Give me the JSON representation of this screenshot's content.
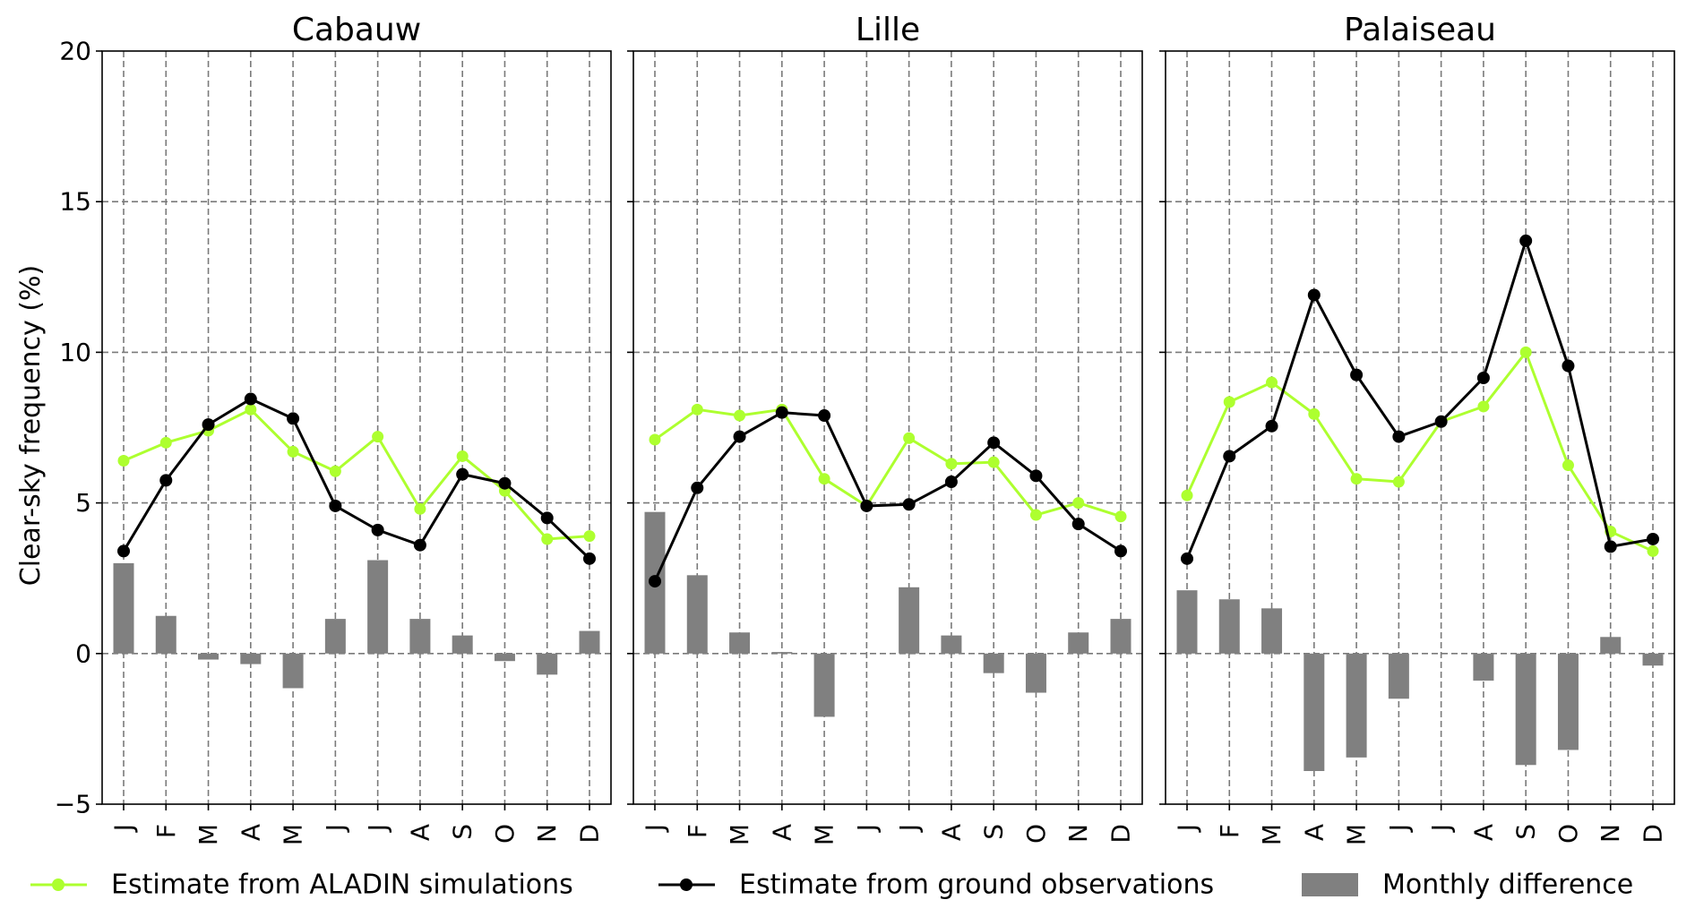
{
  "chart_data": {
    "type": "bar+line",
    "ylabel": "Clear-sky frequency (%)",
    "ylim": [
      -5,
      20
    ],
    "yticks": [
      -5,
      0,
      5,
      10,
      15,
      20
    ],
    "ytick_labels": [
      "−5",
      "0",
      "5",
      "10",
      "15",
      "20"
    ],
    "grid": true,
    "legend_placement": "bottom",
    "categories": [
      "J",
      "F",
      "M",
      "A",
      "M",
      "J",
      "J",
      "A",
      "S",
      "O",
      "N",
      "D"
    ],
    "series_styles": {
      "aladin": {
        "label": "Estimate from ALADIN simulations",
        "color": "#adff2f",
        "kind": "line"
      },
      "ground": {
        "label": "Estimate from ground observations",
        "color": "#000000",
        "kind": "line"
      },
      "difference": {
        "label": "Monthly difference",
        "color": "#808080",
        "kind": "bar"
      }
    },
    "panels": [
      {
        "title": "Cabauw",
        "aladin": [
          6.4,
          7.0,
          7.4,
          8.1,
          6.7,
          6.05,
          7.2,
          4.8,
          6.55,
          5.4,
          3.8,
          3.9
        ],
        "ground": [
          3.4,
          5.75,
          7.6,
          8.45,
          7.8,
          4.9,
          4.1,
          3.6,
          5.95,
          5.65,
          4.5,
          3.15
        ],
        "difference": [
          3.0,
          1.25,
          -0.2,
          -0.35,
          -1.15,
          1.15,
          3.1,
          1.15,
          0.6,
          -0.25,
          -0.7,
          0.75
        ]
      },
      {
        "title": "Lille",
        "aladin": [
          7.1,
          8.1,
          7.9,
          8.1,
          5.8,
          4.9,
          7.15,
          6.3,
          6.35,
          4.6,
          5.0,
          4.55
        ],
        "ground": [
          2.4,
          5.5,
          7.2,
          8.0,
          7.9,
          4.9,
          4.95,
          5.7,
          7.0,
          5.9,
          4.3,
          3.4
        ],
        "difference": [
          4.7,
          2.6,
          0.7,
          0.05,
          -2.1,
          0.0,
          2.2,
          0.6,
          -0.65,
          -1.3,
          0.7,
          1.15
        ]
      },
      {
        "title": "Palaiseau",
        "aladin": [
          5.25,
          8.35,
          9.0,
          7.95,
          5.8,
          5.7,
          7.7,
          8.2,
          10.0,
          6.25,
          4.05,
          3.4
        ],
        "ground": [
          3.15,
          6.55,
          7.55,
          11.9,
          9.25,
          7.2,
          7.7,
          9.15,
          13.7,
          9.55,
          3.55,
          3.8
        ],
        "difference": [
          2.1,
          1.8,
          1.5,
          -3.9,
          -3.45,
          -1.5,
          0.0,
          -0.9,
          -3.7,
          -3.2,
          0.55,
          -0.4
        ]
      }
    ]
  }
}
